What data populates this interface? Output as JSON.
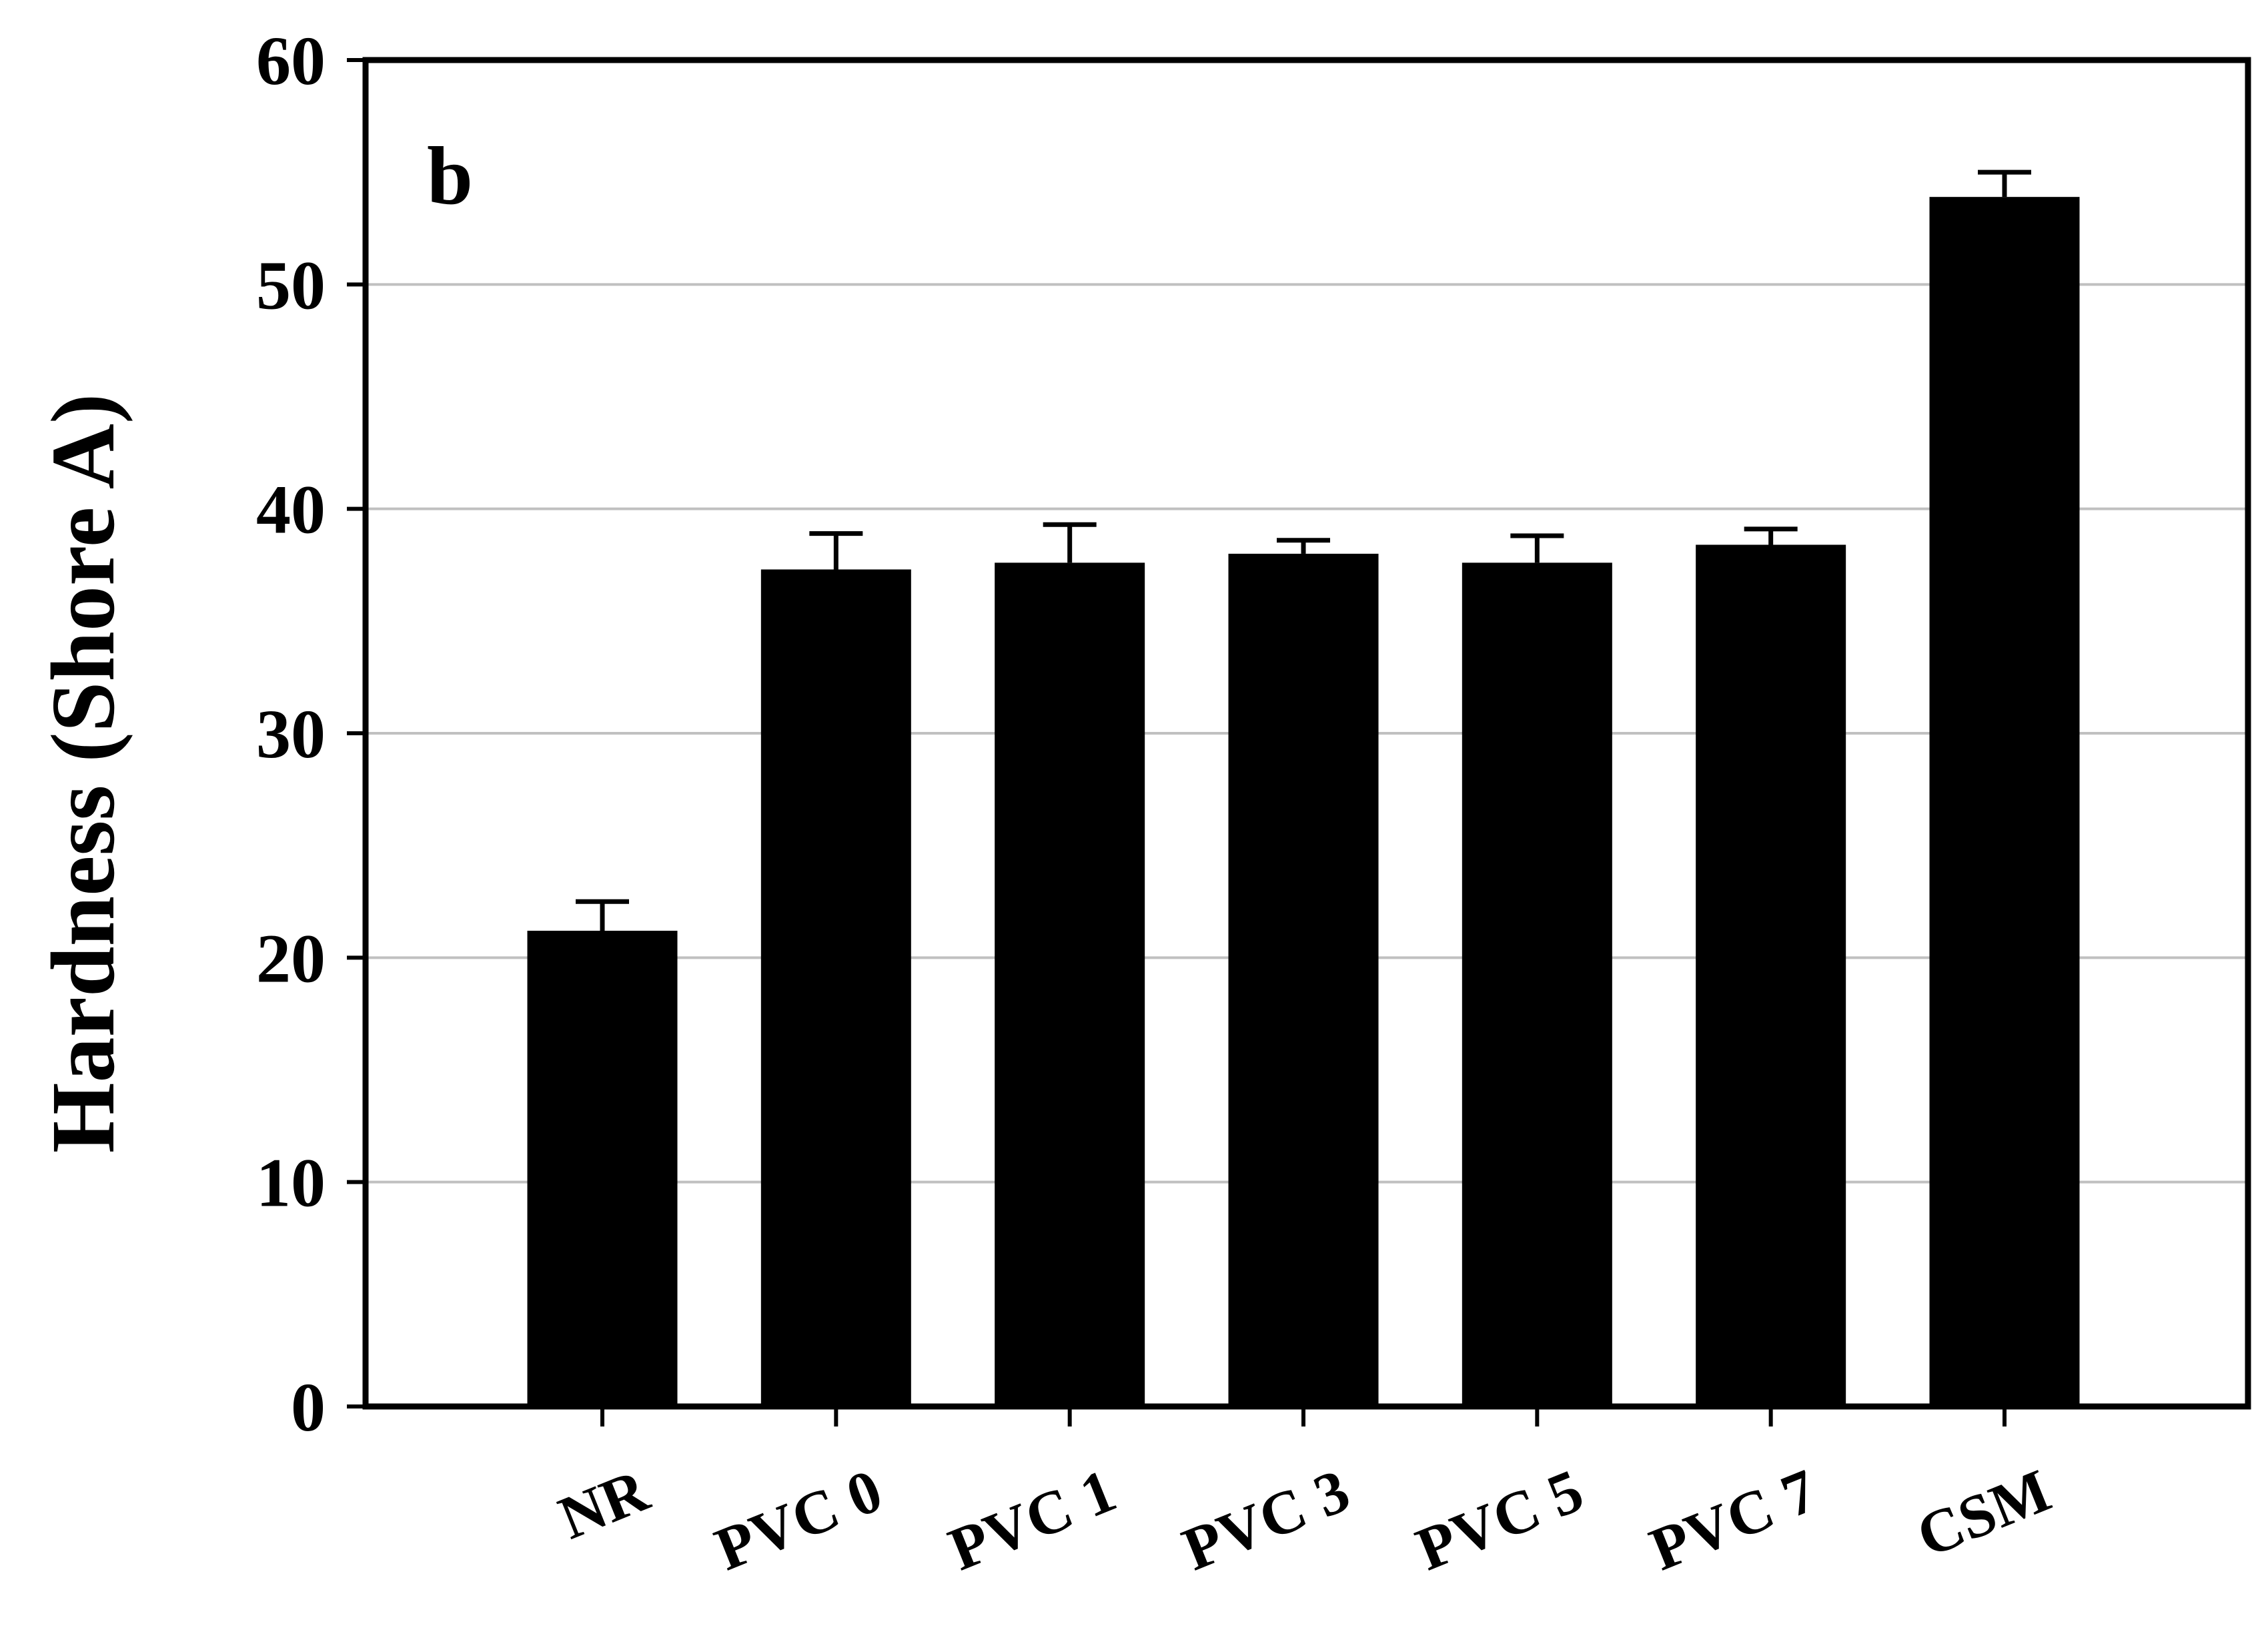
{
  "chart_data": {
    "type": "bar",
    "panel_label": "b",
    "categories": [
      "NR",
      "PVC 0",
      "PVC 1",
      "PVC 3",
      "PVC 5",
      "PVC 7",
      "CSM"
    ],
    "series": [
      {
        "values": [
          21.2,
          37.3,
          37.6,
          38.0,
          37.6,
          38.4,
          53.9
        ],
        "errors": [
          1.3,
          1.6,
          1.7,
          0.6,
          1.2,
          0.7,
          1.1
        ]
      }
    ],
    "ylabel": "Hardness (Shore A)",
    "xlabel": "",
    "ylim": [
      0,
      60
    ],
    "yticks": [
      0,
      10,
      20,
      30,
      40,
      50,
      60
    ],
    "grid": "horizontal",
    "legend": "none",
    "bar_color": "#000000",
    "grid_color": "#c0c0c0"
  }
}
